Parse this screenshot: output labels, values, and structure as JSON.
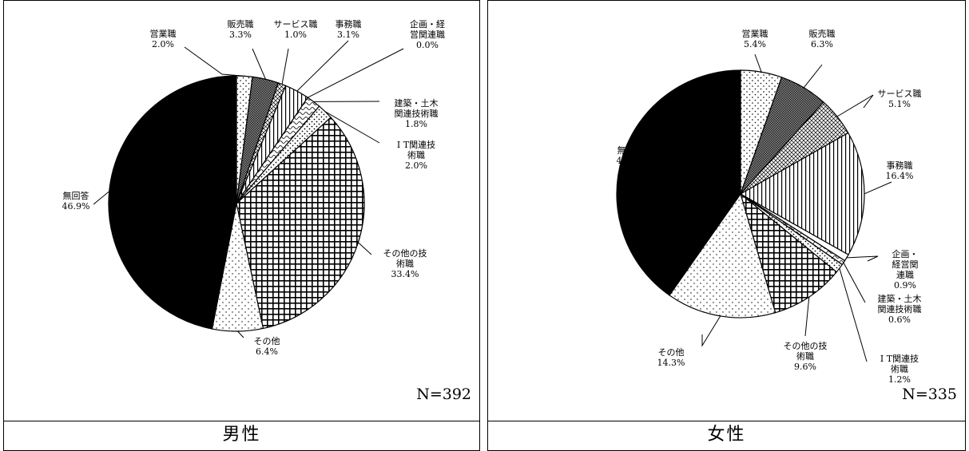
{
  "chart_data": [
    {
      "type": "pie",
      "title": "",
      "group": "男性",
      "n": "N=392",
      "slices": [
        {
          "label": [
            "営業職"
          ],
          "pct": "2.0%",
          "value": 2.0,
          "pattern": "dots-sparse"
        },
        {
          "label": [
            "販売職"
          ],
          "pct": "3.3%",
          "value": 3.3,
          "pattern": "crosshatch-fine"
        },
        {
          "label": [
            "サービス職"
          ],
          "pct": "1.0%",
          "value": 1.0,
          "pattern": "diag-grid"
        },
        {
          "label": [
            "事務職"
          ],
          "pct": "3.1%",
          "value": 3.1,
          "pattern": "vertical"
        },
        {
          "label": [
            "企画・経",
            "営関連職"
          ],
          "pct": "0.0%",
          "value": 0.0,
          "pattern": "none"
        },
        {
          "label": [
            "建築・土木",
            "関連技術職"
          ],
          "pct": "1.8%",
          "value": 1.8,
          "pattern": "wave"
        },
        {
          "label": [
            "I T関連技",
            "術職"
          ],
          "pct": "2.0%",
          "value": 2.0,
          "pattern": "dots-diag"
        },
        {
          "label": [
            "その他の技",
            "術職"
          ],
          "pct": "33.4%",
          "value": 33.4,
          "pattern": "grid"
        },
        {
          "label": [
            "その他"
          ],
          "pct": "6.4%",
          "value": 6.4,
          "pattern": "dots-dense"
        },
        {
          "label": [
            "無回答"
          ],
          "pct": "46.9%",
          "value": 46.9,
          "pattern": "solid-black"
        }
      ]
    },
    {
      "type": "pie",
      "title": "",
      "group": "女性",
      "n": "N=335",
      "slices": [
        {
          "label": [
            "営業職"
          ],
          "pct": "5.4%",
          "value": 5.4,
          "pattern": "dots-sparse"
        },
        {
          "label": [
            "販売職"
          ],
          "pct": "6.3%",
          "value": 6.3,
          "pattern": "crosshatch-fine"
        },
        {
          "label": [
            "サービス職"
          ],
          "pct": "5.1%",
          "value": 5.1,
          "pattern": "diag-grid"
        },
        {
          "label": [
            "事務職"
          ],
          "pct": "16.4%",
          "value": 16.4,
          "pattern": "vertical"
        },
        {
          "label": [
            "企画・",
            "経営関",
            "連職"
          ],
          "pct": "0.9%",
          "value": 0.9,
          "pattern": "none"
        },
        {
          "label": [
            "建築・土木",
            "関連技術職"
          ],
          "pct": "0.6%",
          "value": 0.6,
          "pattern": "wave"
        },
        {
          "label": [
            "I T関連技",
            "術職"
          ],
          "pct": "1.2%",
          "value": 1.2,
          "pattern": "dots-diag"
        },
        {
          "label": [
            "その他の技",
            "術職"
          ],
          "pct": "9.6%",
          "value": 9.6,
          "pattern": "grid"
        },
        {
          "label": [
            "その他"
          ],
          "pct": "14.3%",
          "value": 14.3,
          "pattern": "dots-dense"
        },
        {
          "label": [
            "無回答"
          ],
          "pct": "40.3%",
          "value": 40.3,
          "pattern": "solid-black"
        }
      ]
    }
  ]
}
